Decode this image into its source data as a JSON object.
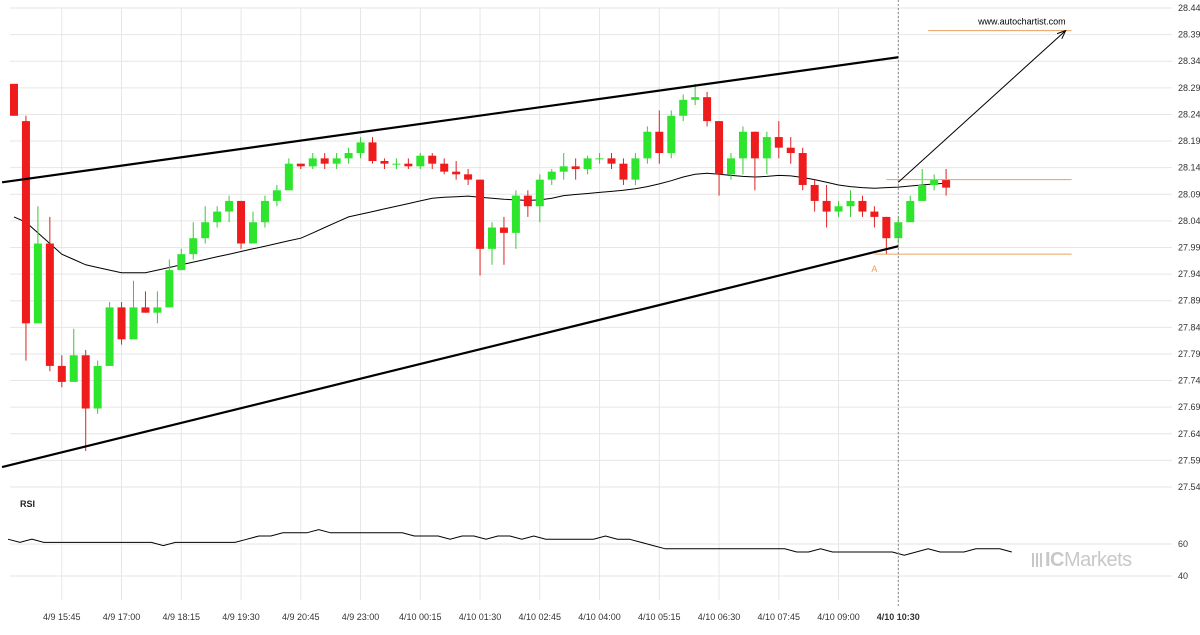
{
  "chart_data": {
    "type": "candlestick",
    "source_label": "www.autochartist.com",
    "y_axis": {
      "ticks": [
        28.4425,
        28.3925,
        28.3425,
        28.2925,
        28.2425,
        28.1925,
        28.1425,
        28.0925,
        28.0425,
        27.9925,
        27.9425,
        27.8925,
        27.8425,
        27.7925,
        27.7425,
        27.6925,
        27.6425,
        27.5925,
        27.5425
      ],
      "ylim": [
        27.5425,
        28.4425
      ]
    },
    "x_axis": {
      "ticks": [
        {
          "i": 4,
          "label": "4/9 15:45"
        },
        {
          "i": 9,
          "label": "4/9 17:00"
        },
        {
          "i": 14,
          "label": "4/9 18:15"
        },
        {
          "i": 19,
          "label": "4/9 19:30"
        },
        {
          "i": 24,
          "label": "4/9 20:45"
        },
        {
          "i": 29,
          "label": "4/9 23:00"
        },
        {
          "i": 34,
          "label": "4/10 00:15"
        },
        {
          "i": 39,
          "label": "4/10 01:30"
        },
        {
          "i": 44,
          "label": "4/10 02:45"
        },
        {
          "i": 49,
          "label": "4/10 04:00"
        },
        {
          "i": 54,
          "label": "4/10 05:15"
        },
        {
          "i": 59,
          "label": "4/10 06:30"
        },
        {
          "i": 64,
          "label": "4/10 07:45"
        },
        {
          "i": 69,
          "label": "4/10 09:00"
        },
        {
          "i": 74,
          "label": "4/10 10:30"
        }
      ],
      "current_index": 74
    },
    "candles": [
      [
        28.3,
        28.3,
        28.24,
        28.24
      ],
      [
        28.23,
        28.24,
        27.78,
        27.85
      ],
      [
        27.85,
        28.07,
        27.85,
        28.0
      ],
      [
        28.0,
        28.05,
        27.76,
        27.77
      ],
      [
        27.77,
        27.79,
        27.73,
        27.74
      ],
      [
        27.74,
        27.84,
        27.74,
        27.79
      ],
      [
        27.79,
        27.8,
        27.61,
        27.69
      ],
      [
        27.69,
        27.78,
        27.68,
        27.77
      ],
      [
        27.77,
        27.89,
        27.77,
        27.88
      ],
      [
        27.88,
        27.89,
        27.81,
        27.82
      ],
      [
        27.82,
        27.93,
        27.82,
        27.88
      ],
      [
        27.88,
        27.91,
        27.87,
        27.87
      ],
      [
        27.87,
        27.91,
        27.85,
        27.88
      ],
      [
        27.88,
        27.97,
        27.88,
        27.95
      ],
      [
        27.95,
        27.99,
        27.95,
        27.98
      ],
      [
        27.98,
        28.04,
        27.97,
        28.01
      ],
      [
        28.01,
        28.07,
        28.0,
        28.04
      ],
      [
        28.04,
        28.07,
        28.03,
        28.06
      ],
      [
        28.06,
        28.09,
        28.04,
        28.08
      ],
      [
        28.08,
        28.08,
        27.99,
        28.0
      ],
      [
        28.0,
        28.06,
        28.0,
        28.04
      ],
      [
        28.04,
        28.09,
        28.03,
        28.08
      ],
      [
        28.08,
        28.11,
        28.07,
        28.1
      ],
      [
        28.1,
        28.16,
        28.1,
        28.15
      ],
      [
        28.15,
        28.15,
        28.14,
        28.145
      ],
      [
        28.145,
        28.17,
        28.14,
        28.16
      ],
      [
        28.16,
        28.17,
        28.14,
        28.15
      ],
      [
        28.15,
        28.17,
        28.14,
        28.16
      ],
      [
        28.16,
        28.18,
        28.15,
        28.17
      ],
      [
        28.17,
        28.2,
        28.16,
        28.19
      ],
      [
        28.19,
        28.2,
        28.15,
        28.155
      ],
      [
        28.155,
        28.16,
        28.14,
        28.15
      ],
      [
        28.15,
        28.16,
        28.14,
        28.15
      ],
      [
        28.15,
        28.16,
        28.14,
        28.145
      ],
      [
        28.145,
        28.17,
        28.14,
        28.165
      ],
      [
        28.165,
        28.17,
        28.14,
        28.15
      ],
      [
        28.15,
        28.16,
        28.13,
        28.135
      ],
      [
        28.135,
        28.155,
        28.12,
        28.13
      ],
      [
        28.13,
        28.14,
        28.11,
        28.12
      ],
      [
        28.12,
        28.12,
        27.94,
        27.99
      ],
      [
        27.99,
        28.04,
        27.96,
        28.03
      ],
      [
        28.03,
        28.05,
        27.96,
        28.02
      ],
      [
        28.02,
        28.1,
        27.99,
        28.09
      ],
      [
        28.09,
        28.1,
        28.05,
        28.07
      ],
      [
        28.07,
        28.13,
        28.04,
        28.12
      ],
      [
        28.12,
        28.14,
        28.11,
        28.135
      ],
      [
        28.135,
        28.17,
        28.12,
        28.145
      ],
      [
        28.145,
        28.16,
        28.12,
        28.14
      ],
      [
        28.14,
        28.165,
        28.13,
        28.16
      ],
      [
        28.16,
        28.17,
        28.15,
        28.16
      ],
      [
        28.16,
        28.17,
        28.14,
        28.15
      ],
      [
        28.15,
        28.16,
        28.11,
        28.12
      ],
      [
        28.12,
        28.17,
        28.11,
        28.16
      ],
      [
        28.16,
        28.22,
        28.15,
        28.21
      ],
      [
        28.21,
        28.25,
        28.15,
        28.17
      ],
      [
        28.17,
        28.25,
        28.16,
        28.24
      ],
      [
        28.24,
        28.28,
        28.23,
        28.27
      ],
      [
        28.27,
        28.3,
        28.26,
        28.275
      ],
      [
        28.275,
        28.285,
        28.22,
        28.23
      ],
      [
        28.23,
        28.23,
        28.09,
        28.13
      ],
      [
        28.13,
        28.17,
        28.12,
        28.16
      ],
      [
        28.16,
        28.22,
        28.13,
        28.21
      ],
      [
        28.21,
        28.21,
        28.1,
        28.16
      ],
      [
        28.16,
        28.21,
        28.13,
        28.2
      ],
      [
        28.2,
        28.23,
        28.16,
        28.18
      ],
      [
        28.18,
        28.2,
        28.15,
        28.17
      ],
      [
        28.17,
        28.18,
        28.1,
        28.11
      ],
      [
        28.11,
        28.12,
        28.06,
        28.08
      ],
      [
        28.08,
        28.11,
        28.03,
        28.06
      ],
      [
        28.06,
        28.08,
        28.05,
        28.07
      ],
      [
        28.07,
        28.1,
        28.05,
        28.08
      ],
      [
        28.08,
        28.09,
        28.05,
        28.06
      ],
      [
        28.06,
        28.07,
        28.03,
        28.05
      ],
      [
        28.05,
        28.05,
        27.98,
        28.01
      ],
      [
        28.01,
        28.05,
        28.0,
        28.04
      ],
      [
        28.04,
        28.09,
        28.04,
        28.08
      ],
      [
        28.08,
        28.14,
        28.08,
        28.11
      ],
      [
        28.11,
        28.13,
        28.1,
        28.12
      ],
      [
        28.12,
        28.14,
        28.09,
        28.105
      ]
    ],
    "candle_fields": [
      "open",
      "high",
      "low",
      "close"
    ],
    "moving_average": [
      28.05,
      28.04,
      28.02,
      28.0,
      27.98,
      27.97,
      27.96,
      27.955,
      27.95,
      27.945,
      27.945,
      27.945,
      27.95,
      27.955,
      27.96,
      27.965,
      27.97,
      27.975,
      27.98,
      27.985,
      27.99,
      27.995,
      28.0,
      28.005,
      28.01,
      28.02,
      28.03,
      28.04,
      28.05,
      28.055,
      28.06,
      28.065,
      28.07,
      28.075,
      28.08,
      28.085,
      28.087,
      28.088,
      28.089,
      28.087,
      28.085,
      28.083,
      28.082,
      28.081,
      28.082,
      28.085,
      28.09,
      28.092,
      28.094,
      28.096,
      28.098,
      28.1,
      28.103,
      28.107,
      28.112,
      28.118,
      28.125,
      28.13,
      28.132,
      28.13,
      28.128,
      28.126,
      28.125,
      28.126,
      28.128,
      28.127,
      28.124,
      28.12,
      28.115,
      28.11,
      28.107,
      28.105,
      28.104,
      28.105,
      28.106,
      28.108,
      28.11,
      28.112,
      28.113
    ],
    "channel": {
      "upper": {
        "i0": -1,
        "v0": 28.115,
        "i1": 74,
        "v1": 28.35
      },
      "lower": {
        "i0": -1,
        "v0": 27.58,
        "i1": 74,
        "v1": 27.995
      }
    },
    "projection": {
      "i0": 74,
      "v0": 28.115,
      "i1": 88,
      "v1": 28.4
    },
    "levels": [
      {
        "value": 28.4,
        "i_start": 76.5,
        "i_end": 88.5,
        "color": "#e8a060"
      },
      {
        "value": 28.12,
        "i_start": 73,
        "i_end": 88.5,
        "color": "#e8a060"
      },
      {
        "value": 27.98,
        "i_start": 72,
        "i_end": 88.5,
        "color": "#e8a060"
      }
    ],
    "point_label": {
      "i": 72,
      "value": 27.965,
      "text": "A",
      "color": "#e8a060"
    },
    "rsi": {
      "label": "RSI",
      "ticks": [
        60,
        40
      ],
      "ylim": [
        30,
        80
      ],
      "values": [
        63,
        61,
        63,
        61,
        61,
        61,
        61,
        61,
        61,
        61,
        61,
        61,
        61,
        59,
        61,
        61,
        61,
        61,
        61,
        61,
        63,
        65,
        65,
        67,
        67,
        67,
        69,
        67,
        67,
        67,
        67,
        67,
        67,
        67,
        65,
        65,
        65,
        63,
        65,
        65,
        63,
        65,
        65,
        63,
        65,
        63,
        63,
        63,
        63,
        63,
        65,
        63,
        63,
        61,
        59,
        57,
        57,
        57,
        57,
        57,
        57,
        57,
        57,
        57,
        57,
        57,
        55,
        55,
        57,
        55,
        55,
        55,
        55,
        55,
        55,
        53,
        55,
        57,
        55,
        55,
        55,
        57,
        57,
        57,
        55
      ]
    },
    "colors": {
      "bull": "#2ee52e",
      "bear": "#ee1c1c",
      "wick_bull": "#33cc33",
      "wick_bear": "#dd2222",
      "channel": "#000000",
      "level": "#e8a060",
      "grid": "#e6e6e6"
    }
  },
  "watermark": {
    "prefix": "IC",
    "suffix": "Markets"
  }
}
